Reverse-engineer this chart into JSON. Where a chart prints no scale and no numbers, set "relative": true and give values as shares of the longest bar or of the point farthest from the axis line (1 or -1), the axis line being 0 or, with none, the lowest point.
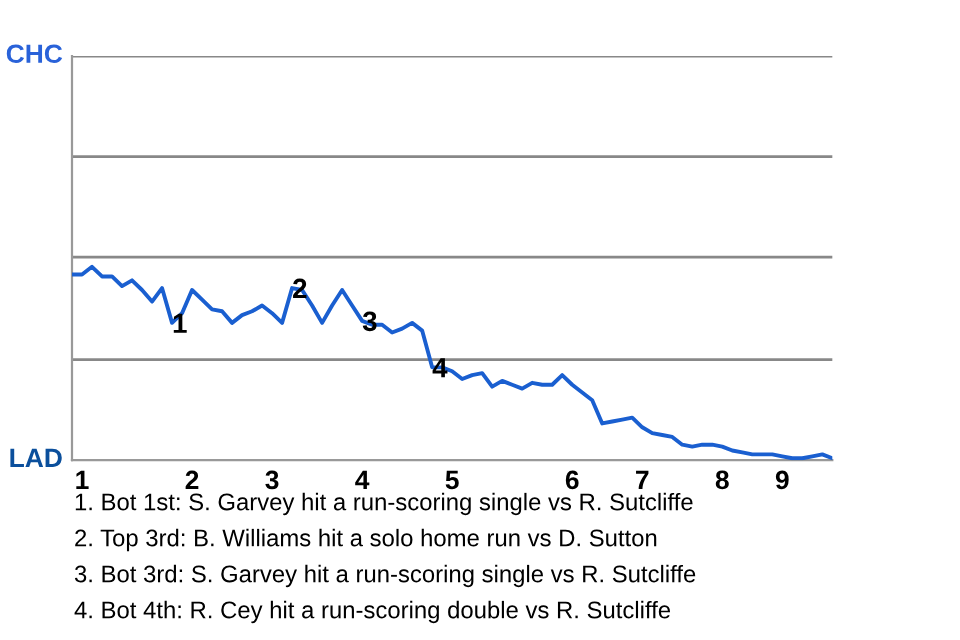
{
  "chart_data": {
    "type": "line",
    "relative": true,
    "categories": [
      null,
      "1",
      null,
      null,
      null,
      null,
      null,
      null,
      null,
      null,
      null,
      null,
      "2",
      null,
      null,
      null,
      null,
      null,
      null,
      null,
      "3",
      null,
      null,
      null,
      null,
      null,
      null,
      null,
      null,
      "4",
      null,
      null,
      null,
      null,
      null,
      null,
      null,
      null,
      "5",
      null,
      null,
      null,
      null,
      null,
      null,
      null,
      null,
      null,
      null,
      null,
      "6",
      null,
      null,
      null,
      null,
      null,
      null,
      "7",
      null,
      null,
      null,
      null,
      null,
      null,
      null,
      "8",
      null,
      null,
      null,
      null,
      null,
      "9",
      null,
      null,
      null,
      null,
      null
    ],
    "legend": false,
    "marker": "none",
    "line_style": "solid",
    "ref_lines": [
      {
        "axis": "y",
        "value": 0.52,
        "color": "#888888"
      },
      {
        "axis": "y",
        "value": 1.05,
        "color": "#888888"
      },
      {
        "axis": "y",
        "value": 1.57,
        "color": "#888888"
      },
      {
        "axis": "y",
        "value": 2.09,
        "color": "#888888"
      }
    ],
    "series": [
      {
        "color": "#1a5fd0",
        "values": [
          0.96,
          0.96,
          1,
          0.95,
          0.95,
          0.9,
          0.93,
          0.88,
          0.82,
          0.89,
          0.71,
          0.76,
          0.88,
          0.83,
          0.78,
          0.77,
          0.71,
          0.75,
          0.77,
          0.8,
          0.76,
          0.71,
          0.89,
          0.88,
          0.8,
          0.71,
          0.8,
          0.88,
          0.8,
          0.72,
          0.7,
          0.7,
          0.66,
          0.68,
          0.71,
          0.67,
          0.48,
          0.48,
          0.46,
          0.42,
          0.44,
          0.45,
          0.38,
          0.41,
          0.39,
          0.37,
          0.4,
          0.39,
          0.39,
          0.44,
          0.39,
          0.35,
          0.31,
          0.19,
          0.2,
          0.21,
          0.22,
          0.17,
          0.14,
          0.13,
          0.12,
          0.08,
          0.07,
          0.08,
          0.08,
          0.07,
          0.05,
          0.04,
          0.03,
          0.03,
          0.03,
          0.02,
          0.01,
          0.01,
          0.02,
          0.03,
          0.01
        ]
      }
    ],
    "annotations": [
      {
        "text": "1",
        "y": 0.71
      },
      {
        "text": "2",
        "y": 0.89
      },
      {
        "text": "3",
        "y": 0.72
      },
      {
        "text": "4",
        "y": 0.48
      },
      "CHC",
      "LAD",
      "1. Bot 1st: S. Garvey hit a run-scoring single vs R. Sutcliffe",
      "2. Top 3rd: B. Williams hit a solo home run vs D. Sutton",
      "3. Bot 3rd: S. Garvey hit a run-scoring single vs R. Sutcliffe",
      "4. Bot 4th: R. Cey hit a run-scoring double vs R. Sutcliffe"
    ]
  }
}
